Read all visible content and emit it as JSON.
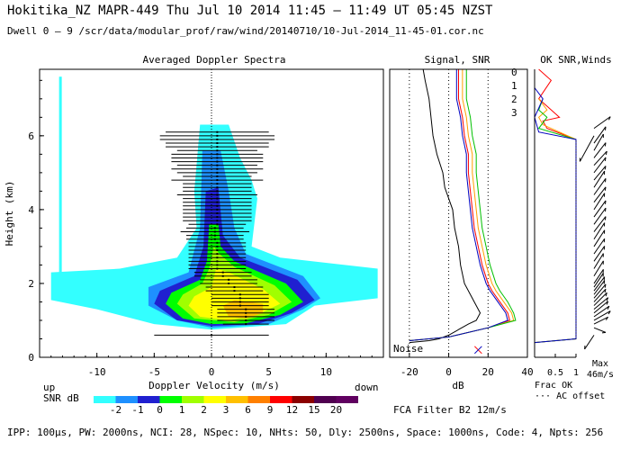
{
  "header": {
    "line1": "Hokitika_NZ  MAPR-449  Thu Jul 10 2014 11:45 – 11:49 UT 05:45 NZST",
    "line2": "Dwell  0 –  9   /scr/data/modular_prof/raw/wind/20140710/10-Jul-2014_11-45-01.cor.nc"
  },
  "footer": {
    "params": "IPP: 100µs,  PW: 2000ns,  NCI:  28,  NSpec: 10,  NHts: 50,  Dly: 2500ns,  Space: 1000ns,  Code: 4,  Npts: 256",
    "filter": "FCA Filter B2 12m/s"
  },
  "colorbar": {
    "up_label": "up",
    "down_label": "down",
    "snr_label": "SNR dB",
    "levels": [
      "-2",
      "-1",
      "0",
      "1",
      "2",
      "3",
      "6",
      "9",
      "12",
      "15",
      "20"
    ],
    "colors": [
      "#33ffff",
      "#1e90ff",
      "#2020d0",
      "#00ff00",
      "#a0ff00",
      "#ffff00",
      "#ffc000",
      "#ff8000",
      "#ff0000",
      "#8b0000",
      "#500050",
      "#600060"
    ]
  },
  "chart_data": [
    {
      "type": "heatmap",
      "title": "Averaged Doppler Spectra",
      "xlabel": "Doppler Velocity (m/s)",
      "ylabel": "Height (km)",
      "xlim": [
        -15,
        15
      ],
      "ylim": [
        0,
        7.8
      ],
      "xticks": [
        -10,
        -5,
        0,
        5,
        10
      ],
      "yticks": [
        0,
        2,
        4,
        6
      ],
      "profile": [
        {
          "h": 0.6,
          "mean": 0.0,
          "width": 5.0
        },
        {
          "h": 0.9,
          "mean": 3.0,
          "width": 2.0
        },
        {
          "h": 1.0,
          "mean": 3.0,
          "width": 2.5
        },
        {
          "h": 1.1,
          "mean": 3.0,
          "width": 2.5
        },
        {
          "h": 1.2,
          "mean": 3.0,
          "width": 2.5
        },
        {
          "h": 1.3,
          "mean": 3.0,
          "width": 2.5
        },
        {
          "h": 1.4,
          "mean": 2.5,
          "width": 2.5
        },
        {
          "h": 1.5,
          "mean": 2.5,
          "width": 2.5
        },
        {
          "h": 1.6,
          "mean": 2.5,
          "width": 2.5
        },
        {
          "h": 1.7,
          "mean": 2.5,
          "width": 2.5
        },
        {
          "h": 1.8,
          "mean": 2.0,
          "width": 2.5
        },
        {
          "h": 1.9,
          "mean": 2.0,
          "width": 2.5
        },
        {
          "h": 2.0,
          "mean": 1.5,
          "width": 2.5
        },
        {
          "h": 2.1,
          "mean": 1.5,
          "width": 2.5
        },
        {
          "h": 2.2,
          "mean": 1.0,
          "width": 2.5
        },
        {
          "h": 2.3,
          "mean": 1.0,
          "width": 2.5
        },
        {
          "h": 2.4,
          "mean": 0.5,
          "width": 2.5
        },
        {
          "h": 2.5,
          "mean": 0.5,
          "width": 2.5
        },
        {
          "h": 2.6,
          "mean": 0.5,
          "width": 2.5
        },
        {
          "h": 2.7,
          "mean": 0.5,
          "width": 2.5
        },
        {
          "h": 2.8,
          "mean": 0.5,
          "width": 2.5
        },
        {
          "h": 2.9,
          "mean": 0.5,
          "width": 2.5
        },
        {
          "h": 3.0,
          "mean": 0.5,
          "width": 2.5
        },
        {
          "h": 3.1,
          "mean": 0.5,
          "width": 2.5
        },
        {
          "h": 3.2,
          "mean": 0.3,
          "width": 2.5
        },
        {
          "h": 3.3,
          "mean": 0.3,
          "width": 2.5
        },
        {
          "h": 3.4,
          "mean": 0.3,
          "width": 3.0
        },
        {
          "h": 3.5,
          "mean": 0.3,
          "width": 2.5
        },
        {
          "h": 3.6,
          "mean": 0.5,
          "width": 2.5
        },
        {
          "h": 3.7,
          "mean": 0.5,
          "width": 3.0
        },
        {
          "h": 3.8,
          "mean": 0.5,
          "width": 3.0
        },
        {
          "h": 3.9,
          "mean": 0.5,
          "width": 3.0
        },
        {
          "h": 4.0,
          "mean": 0.5,
          "width": 3.0
        },
        {
          "h": 4.1,
          "mean": 0.5,
          "width": 3.0
        },
        {
          "h": 4.2,
          "mean": 0.5,
          "width": 3.0
        },
        {
          "h": 4.3,
          "mean": 0.5,
          "width": 3.0
        },
        {
          "h": 4.4,
          "mean": 0.5,
          "width": 3.5
        },
        {
          "h": 4.5,
          "mean": 0.5,
          "width": 3.0
        },
        {
          "h": 4.6,
          "mean": 0.5,
          "width": 3.0
        },
        {
          "h": 4.7,
          "mean": 0.5,
          "width": 3.0
        },
        {
          "h": 4.8,
          "mean": 0.5,
          "width": 4.0
        },
        {
          "h": 4.9,
          "mean": 0.5,
          "width": 3.0
        },
        {
          "h": 5.0,
          "mean": 0.5,
          "width": 3.5
        },
        {
          "h": 5.1,
          "mean": 0.5,
          "width": 4.0
        },
        {
          "h": 5.2,
          "mean": 0.5,
          "width": 3.5
        },
        {
          "h": 5.3,
          "mean": 0.5,
          "width": 4.0
        },
        {
          "h": 5.4,
          "mean": 0.5,
          "width": 4.0
        },
        {
          "h": 5.5,
          "mean": 0.5,
          "width": 4.0
        },
        {
          "h": 5.6,
          "mean": 0.5,
          "width": 3.5
        },
        {
          "h": 5.7,
          "mean": 0.5,
          "width": 4.5
        },
        {
          "h": 5.8,
          "mean": 0.5,
          "width": 4.5
        },
        {
          "h": 5.9,
          "mean": 0.5,
          "width": 5.0
        },
        {
          "h": 6.0,
          "mean": 0.5,
          "width": 5.0
        },
        {
          "h": 6.1,
          "mean": 0.5,
          "width": 4.5
        }
      ]
    },
    {
      "type": "line",
      "title": "Signal, SNR",
      "xlabel": "dB",
      "xlim": [
        -30,
        40
      ],
      "xticks": [
        -20,
        0,
        20,
        40
      ],
      "reference_lines": [
        -20,
        0,
        20
      ],
      "noise_label": "Noise",
      "legend": [
        "0",
        "1",
        "2",
        "3"
      ],
      "series": [
        {
          "name": "noise",
          "color": "#000000",
          "points": [
            [
              -20,
              0.4
            ],
            [
              -10,
              0.45
            ],
            [
              -5,
              0.5
            ],
            [
              0,
              0.6
            ],
            [
              5,
              0.75
            ],
            [
              10,
              0.9
            ],
            [
              14,
              1.0
            ],
            [
              16,
              1.2
            ],
            [
              12,
              1.6
            ],
            [
              8,
              2.0
            ],
            [
              6,
              2.5
            ],
            [
              5,
              3.0
            ],
            [
              3,
              3.5
            ],
            [
              2,
              4.0
            ],
            [
              -2,
              4.6
            ],
            [
              -3,
              5.0
            ],
            [
              -6,
              5.5
            ],
            [
              -8,
              6.0
            ],
            [
              -9,
              6.5
            ],
            [
              -10,
              7.0
            ],
            [
              -12,
              7.5
            ],
            [
              -13,
              7.8
            ]
          ]
        },
        {
          "name": "0",
          "color": "#ff0000",
          "points": [
            [
              -20,
              0.45
            ],
            [
              0,
              0.55
            ],
            [
              20,
              0.8
            ],
            [
              31,
              1.0
            ],
            [
              30,
              1.2
            ],
            [
              26,
              1.5
            ],
            [
              22,
              1.8
            ],
            [
              20,
              2.0
            ],
            [
              17,
              2.5
            ],
            [
              15,
              3.0
            ],
            [
              13,
              3.5
            ],
            [
              12,
              4.0
            ],
            [
              11,
              4.5
            ],
            [
              10,
              5.0
            ],
            [
              10,
              5.5
            ],
            [
              8,
              6.0
            ],
            [
              7,
              6.5
            ],
            [
              5,
              7.0
            ],
            [
              5,
              7.8
            ]
          ]
        },
        {
          "name": "1",
          "color": "#ffa000",
          "points": [
            [
              -20,
              0.45
            ],
            [
              0,
              0.55
            ],
            [
              20,
              0.8
            ],
            [
              33,
              1.0
            ],
            [
              32,
              1.2
            ],
            [
              28,
              1.5
            ],
            [
              24,
              1.8
            ],
            [
              22,
              2.0
            ],
            [
              19,
              2.5
            ],
            [
              17,
              3.0
            ],
            [
              15,
              3.5
            ],
            [
              14,
              4.0
            ],
            [
              13,
              4.5
            ],
            [
              12,
              5.0
            ],
            [
              12,
              5.5
            ],
            [
              10,
              6.0
            ],
            [
              9,
              6.5
            ],
            [
              7,
              7.0
            ],
            [
              7,
              7.8
            ]
          ]
        },
        {
          "name": "2",
          "color": "#00c000",
          "points": [
            [
              -20,
              0.45
            ],
            [
              0,
              0.55
            ],
            [
              20,
              0.8
            ],
            [
              34,
              1.0
            ],
            [
              33,
              1.2
            ],
            [
              30,
              1.5
            ],
            [
              26,
              1.8
            ],
            [
              24,
              2.0
            ],
            [
              21,
              2.5
            ],
            [
              19,
              3.0
            ],
            [
              17,
              3.5
            ],
            [
              16,
              4.0
            ],
            [
              15,
              4.5
            ],
            [
              14,
              5.0
            ],
            [
              14,
              5.5
            ],
            [
              12,
              6.0
            ],
            [
              11,
              6.5
            ],
            [
              9,
              7.0
            ],
            [
              9,
              7.8
            ]
          ]
        },
        {
          "name": "3",
          "color": "#0000c0",
          "points": [
            [
              -20,
              0.45
            ],
            [
              0,
              0.55
            ],
            [
              20,
              0.8
            ],
            [
              30,
              1.0
            ],
            [
              29,
              1.2
            ],
            [
              25,
              1.5
            ],
            [
              21,
              1.8
            ],
            [
              19,
              2.0
            ],
            [
              16,
              2.5
            ],
            [
              14,
              3.0
            ],
            [
              12,
              3.5
            ],
            [
              11,
              4.0
            ],
            [
              10,
              4.5
            ],
            [
              9,
              5.0
            ],
            [
              9,
              5.5
            ],
            [
              7,
              6.0
            ],
            [
              6,
              6.5
            ],
            [
              4,
              7.0
            ],
            [
              4,
              7.8
            ]
          ]
        }
      ]
    },
    {
      "type": "line",
      "title": "OK SNR,Winds",
      "xlabel": "Frac OK",
      "sublabel": "··· AC offset",
      "xlim": [
        0,
        1
      ],
      "xticks": [
        "0.5",
        "1"
      ],
      "max_label": "Max",
      "max_value": "46m/s",
      "series": [
        {
          "name": "0",
          "color": "#ff0000",
          "points": [
            [
              0.0,
              0.4
            ],
            [
              1.0,
              0.5
            ],
            [
              1.0,
              5.9
            ],
            [
              0.3,
              6.2
            ],
            [
              0.2,
              6.4
            ],
            [
              0.6,
              6.5
            ],
            [
              0.3,
              6.8
            ],
            [
              0.1,
              7.0
            ],
            [
              0.4,
              7.5
            ],
            [
              0.1,
              7.8
            ]
          ]
        },
        {
          "name": "1",
          "color": "#ffa000",
          "points": [
            [
              0.0,
              0.4
            ],
            [
              1.0,
              0.5
            ],
            [
              1.0,
              5.9
            ],
            [
              0.2,
              6.3
            ],
            [
              0.1,
              6.5
            ],
            [
              0.3,
              6.7
            ],
            [
              0.1,
              7.0
            ]
          ]
        },
        {
          "name": "2",
          "color": "#00c000",
          "points": [
            [
              0.0,
              0.4
            ],
            [
              1.0,
              0.5
            ],
            [
              1.0,
              5.9
            ],
            [
              0.1,
              6.2
            ],
            [
              0.3,
              6.5
            ],
            [
              0.1,
              6.7
            ],
            [
              0.2,
              7.0
            ]
          ]
        },
        {
          "name": "3",
          "color": "#0000c0",
          "points": [
            [
              0.0,
              0.4
            ],
            [
              1.0,
              0.5
            ],
            [
              1.0,
              5.9
            ],
            [
              0.1,
              6.1
            ],
            [
              0.0,
              6.5
            ],
            [
              0.2,
              7.0
            ],
            [
              0.0,
              7.3
            ]
          ]
        }
      ],
      "winds": [
        {
          "h": 0.6,
          "u": -8,
          "v": -12
        },
        {
          "h": 0.8,
          "u": 10,
          "v": -4
        },
        {
          "h": 0.9,
          "u": 12,
          "v": 6
        },
        {
          "h": 1.0,
          "u": 14,
          "v": 8
        },
        {
          "h": 1.1,
          "u": 13,
          "v": 9
        },
        {
          "h": 1.2,
          "u": 12,
          "v": 10
        },
        {
          "h": 1.3,
          "u": 12,
          "v": 10
        },
        {
          "h": 1.4,
          "u": 11,
          "v": 11
        },
        {
          "h": 1.5,
          "u": 10,
          "v": 11
        },
        {
          "h": 1.6,
          "u": 10,
          "v": 12
        },
        {
          "h": 1.7,
          "u": 9,
          "v": 12
        },
        {
          "h": 1.8,
          "u": 9,
          "v": 12
        },
        {
          "h": 1.9,
          "u": 8,
          "v": 12
        },
        {
          "h": 2.0,
          "u": 8,
          "v": 12
        },
        {
          "h": 2.2,
          "u": 8,
          "v": 13
        },
        {
          "h": 2.4,
          "u": 8,
          "v": 13
        },
        {
          "h": 2.6,
          "u": 9,
          "v": 13
        },
        {
          "h": 2.8,
          "u": 9,
          "v": 13
        },
        {
          "h": 3.0,
          "u": 9,
          "v": 14
        },
        {
          "h": 3.2,
          "u": 9,
          "v": 14
        },
        {
          "h": 3.4,
          "u": 10,
          "v": 13
        },
        {
          "h": 3.6,
          "u": 10,
          "v": 14
        },
        {
          "h": 3.8,
          "u": 10,
          "v": 14
        },
        {
          "h": 4.0,
          "u": 9,
          "v": 14
        },
        {
          "h": 4.2,
          "u": 10,
          "v": 13
        },
        {
          "h": 4.4,
          "u": 10,
          "v": 14
        },
        {
          "h": 4.6,
          "u": 9,
          "v": 14
        },
        {
          "h": 4.8,
          "u": 10,
          "v": 12
        },
        {
          "h": 5.0,
          "u": 10,
          "v": 13
        },
        {
          "h": 5.2,
          "u": 11,
          "v": 12
        },
        {
          "h": 5.4,
          "u": 10,
          "v": 13
        },
        {
          "h": 5.6,
          "u": 8,
          "v": 14
        },
        {
          "h": 5.8,
          "u": 10,
          "v": 14
        },
        {
          "h": 6.0,
          "u": -12,
          "v": -22
        },
        {
          "h": 6.2,
          "u": 14,
          "v": 10
        }
      ]
    }
  ]
}
